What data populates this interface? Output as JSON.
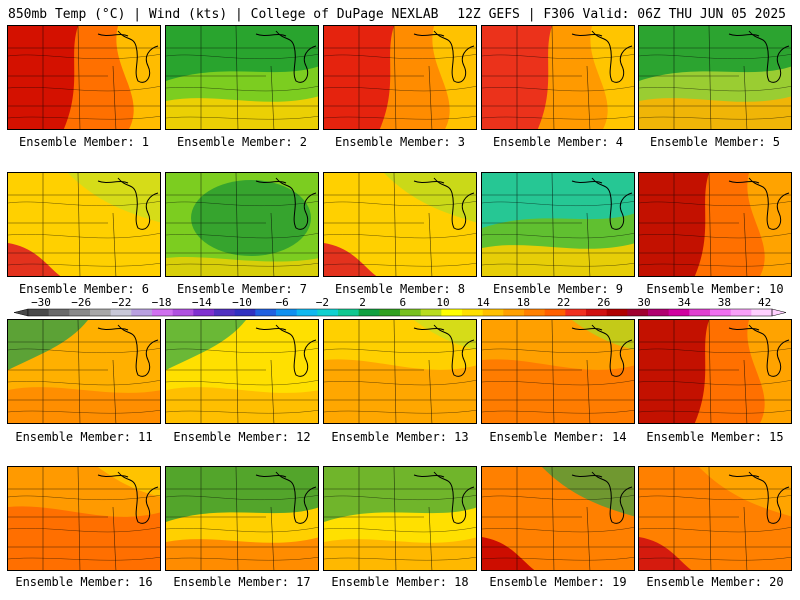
{
  "header": {
    "left_title": "850mb Temp (°C) | Wind (kts) | College of DuPage NEXLAB",
    "right_title": "12Z GEFS | F306 Valid: 06Z THU JUN 05 2025"
  },
  "members": [
    {
      "label": "Ensemble Member: 1",
      "hot": "#cc0000",
      "mid": "#ff7000",
      "cool": "#ffd000",
      "style": "hotwest"
    },
    {
      "label": "Ensemble Member: 2",
      "hot": "#ffd000",
      "mid": "#7ccd20",
      "cool": "#20a030",
      "style": "coolnorth"
    },
    {
      "label": "Ensemble Member: 3",
      "hot": "#e01010",
      "mid": "#ff8c00",
      "cool": "#ffd000",
      "style": "hotwest"
    },
    {
      "label": "Ensemble Member: 4",
      "hot": "#e82020",
      "mid": "#ff9a00",
      "cool": "#ffd000",
      "style": "hotwest"
    },
    {
      "label": "Ensemble Member: 5",
      "hot": "#ffb000",
      "mid": "#9acd32",
      "cool": "#20a030",
      "style": "coolnorth"
    },
    {
      "label": "Ensemble Member: 6",
      "hot": "#e02020",
      "mid": "#ffd000",
      "cool": "#c8e020",
      "style": "hotsw"
    },
    {
      "label": "Ensemble Member: 7",
      "hot": "#ffd000",
      "mid": "#7ccd20",
      "cool": "#2fa030",
      "style": "coolcenter"
    },
    {
      "label": "Ensemble Member: 8",
      "hot": "#e02020",
      "mid": "#ffd000",
      "cool": "#b8dc20",
      "style": "hotsw"
    },
    {
      "label": "Ensemble Member: 9",
      "hot": "#ffd000",
      "mid": "#60c030",
      "cool": "#20c8a0",
      "style": "coolnorth"
    },
    {
      "label": "Ensemble Member: 10",
      "hot": "#b80000",
      "mid": "#ff7000",
      "cool": "#ffb000",
      "style": "hotwest"
    },
    {
      "label": "Ensemble Member: 11",
      "hot": "#ff8000",
      "mid": "#ffb000",
      "cool": "#40a040",
      "style": "coolnw"
    },
    {
      "label": "Ensemble Member: 12",
      "hot": "#ffb000",
      "mid": "#ffe000",
      "cool": "#50b040",
      "style": "coolnw"
    },
    {
      "label": "Ensemble Member: 13",
      "hot": "#ff9a00",
      "mid": "#ffd000",
      "cool": "#c8e020",
      "style": "warm"
    },
    {
      "label": "Ensemble Member: 14",
      "hot": "#ff7000",
      "mid": "#ffa000",
      "cool": "#b0d820",
      "style": "warm"
    },
    {
      "label": "Ensemble Member: 15",
      "hot": "#b80000",
      "mid": "#ff7000",
      "cool": "#ffb000",
      "style": "hotwest"
    },
    {
      "label": "Ensemble Member: 16",
      "hot": "#ff6000",
      "mid": "#ff9a00",
      "cool": "#ffd000",
      "style": "warm"
    },
    {
      "label": "Ensemble Member: 17",
      "hot": "#ff8000",
      "mid": "#ffd000",
      "cool": "#40a030",
      "style": "coolnorth"
    },
    {
      "label": "Ensemble Member: 18",
      "hot": "#ffb000",
      "mid": "#ffe000",
      "cool": "#60b030",
      "style": "coolnorth"
    },
    {
      "label": "Ensemble Member: 19",
      "hot": "#c80000",
      "mid": "#ff8000",
      "cool": "#40a040",
      "style": "hotsw"
    },
    {
      "label": "Ensemble Member: 20",
      "hot": "#d01010",
      "mid": "#ff8000",
      "cool": "#ffb000",
      "style": "hotsw"
    }
  ],
  "colorbar": {
    "ticks": [
      "−30",
      "−26",
      "−22",
      "−18",
      "−14",
      "−10",
      "−6",
      "−2",
      "2",
      "6",
      "10",
      "14",
      "18",
      "22",
      "26",
      "30",
      "34",
      "38",
      "42"
    ],
    "colors": [
      "#4a4a4a",
      "#6a6a6a",
      "#8a8a8a",
      "#a8a8a8",
      "#c8c8d8",
      "#b8a0e0",
      "#d070f0",
      "#b050e0",
      "#8030d0",
      "#5030c0",
      "#3030c0",
      "#2060e0",
      "#1090f0",
      "#10b8f0",
      "#10d0d0",
      "#10c890",
      "#10a040",
      "#30a020",
      "#78c020",
      "#b8dc20",
      "#ffff00",
      "#ffe000",
      "#ffc000",
      "#ffa000",
      "#ff8000",
      "#ff6000",
      "#f03020",
      "#d01010",
      "#b00000",
      "#a00030",
      "#b00070",
      "#d000a0",
      "#e040d0",
      "#f070f0",
      "#f8a0f8",
      "#ffd0ff"
    ]
  }
}
